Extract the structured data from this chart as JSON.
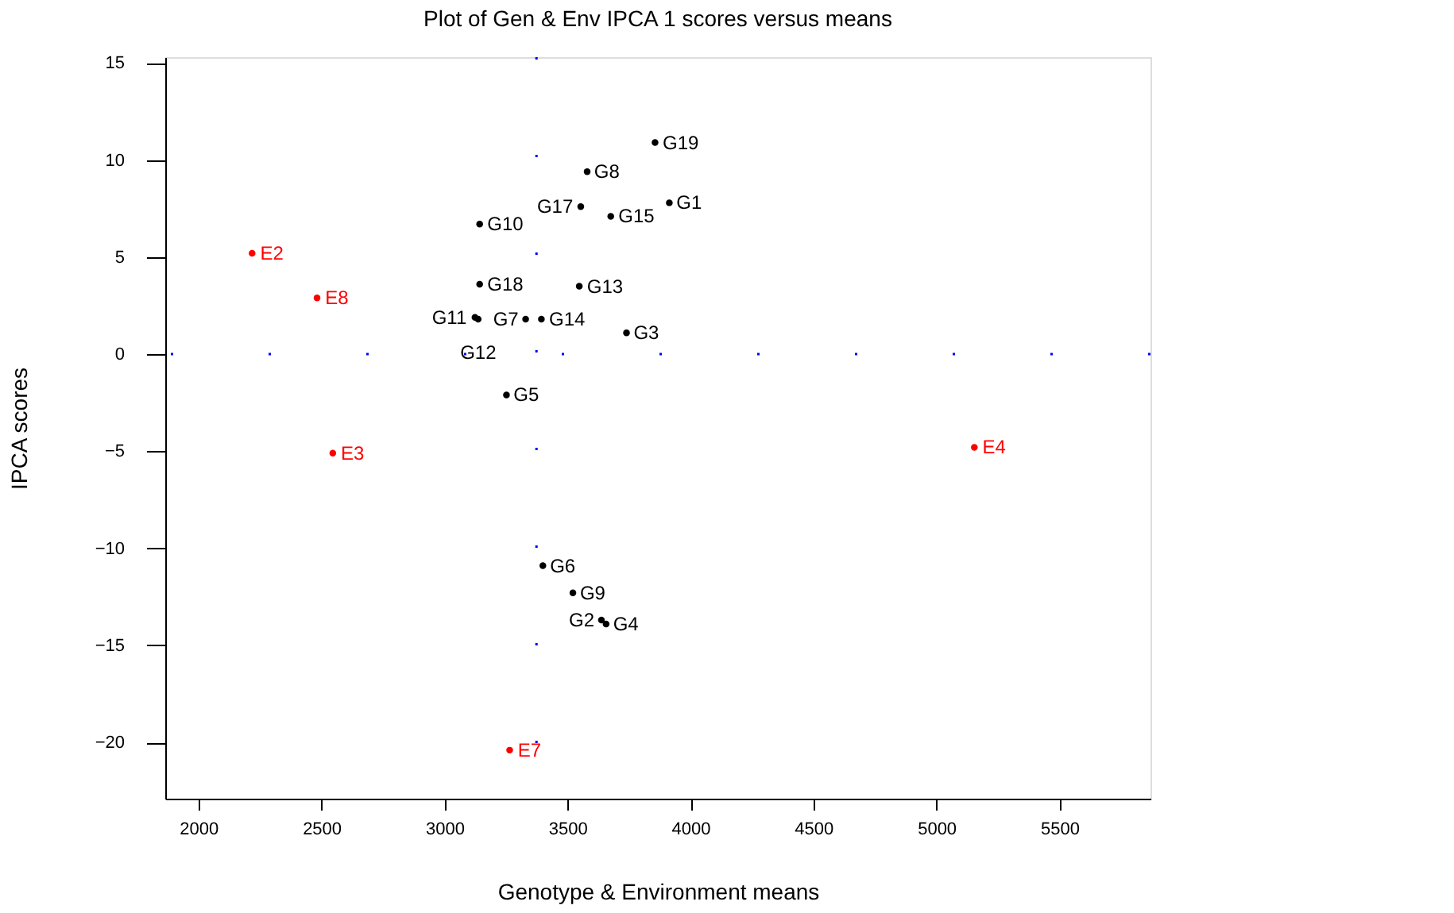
{
  "chart_data": {
    "type": "scatter",
    "title": "Plot of Gen & Env IPCA 1 scores versus means",
    "xlabel": "Genotype & Environment means",
    "ylabel": "IPCA scores",
    "xlim": [
      1865,
      5870
    ],
    "ylim": [
      -22.9,
      15.3
    ],
    "xticks": [
      2000,
      2500,
      3000,
      3500,
      4000,
      4500,
      5000,
      5500
    ],
    "yticks": [
      -20,
      -15,
      -10,
      -5,
      0,
      5,
      10,
      15
    ],
    "grid": false,
    "marker": "circle",
    "series": [
      {
        "color": "#000000",
        "x": [
          3914,
          3638,
          3740,
          3657,
          3252,
          3400,
          3330,
          3580,
          3522,
          3143,
          3124,
          3137,
          3548,
          3394,
          3676,
          3554,
          3143,
          3856
        ],
        "values": [
          7.8,
          -13.7,
          1.1,
          -13.9,
          -2.1,
          -10.9,
          1.8,
          9.4,
          -12.3,
          6.7,
          1.9,
          1.8,
          3.5,
          1.8,
          7.1,
          7.6,
          3.6,
          10.9
        ],
        "value_labels": [
          "G1",
          "G2",
          "G3",
          "G4",
          "G5",
          "G6",
          "G7",
          "G8",
          "G9",
          "G10",
          "G11",
          "G12",
          "G13",
          "G14",
          "G15",
          "G17",
          "G18",
          "G19"
        ]
      },
      {
        "color": "#ff0000",
        "x": [
          2218,
          2546,
          5154,
          3265,
          2482
        ],
        "values": [
          5.2,
          -5.1,
          -4.8,
          -20.4,
          2.9
        ],
        "value_labels": [
          "E2",
          "E3",
          "E4",
          "E7",
          "E8"
        ]
      }
    ],
    "ref_lines": [
      {
        "axis": "y",
        "value": 0,
        "color": "#0000ff",
        "line_style": "dotted"
      },
      {
        "axis": "x",
        "value": 3374,
        "color": "#0000ff",
        "line_style": "dotted"
      }
    ]
  }
}
